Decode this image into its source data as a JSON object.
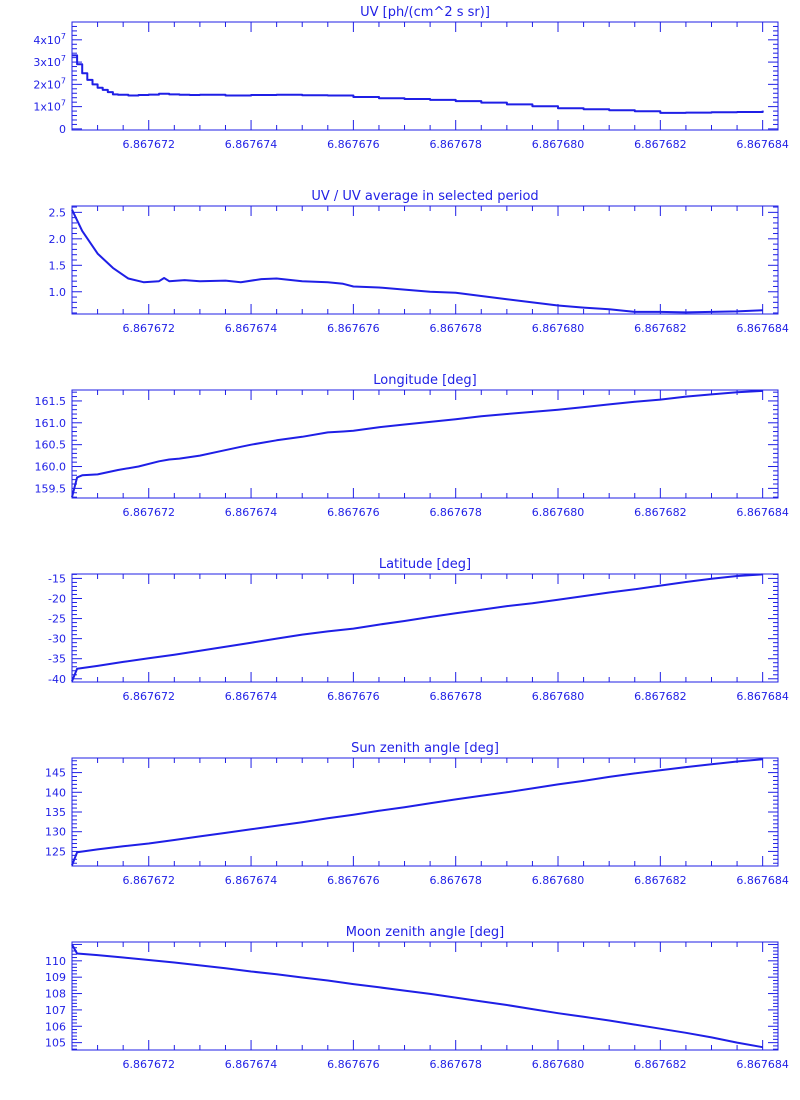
{
  "colors": {
    "ink": "#1f1fe6",
    "background": "#ffffff"
  },
  "chart_data": [
    {
      "type": "line",
      "title": "UV [ph/(cm^2 s sr)]",
      "xlim": [
        6.8676705,
        6.8676843
      ],
      "ylim": [
        -500000,
        48000000
      ],
      "x_ticks": [
        6.867672,
        6.867674,
        6.867676,
        6.867678,
        6.86768,
        6.867682,
        6.867684
      ],
      "x_tick_labels": [
        "6.867672",
        "6.867674",
        "6.867676",
        "6.867678",
        "6.867680",
        "6.867682",
        "6.867684"
      ],
      "y_ticks": [
        0,
        10000000,
        20000000,
        30000000,
        40000000
      ],
      "y_tick_labels": [
        {
          "base": "0",
          "exp": ""
        },
        {
          "base": "1x10",
          "exp": "7"
        },
        {
          "base": "2x10",
          "exp": "7"
        },
        {
          "base": "3x10",
          "exp": "7"
        },
        {
          "base": "4x10",
          "exp": "7"
        }
      ],
      "step": true,
      "x": [
        6.8676705,
        6.8676706,
        6.8676707,
        6.8676708,
        6.8676709,
        6.867671,
        6.8676711,
        6.8676712,
        6.8676713,
        6.8676714,
        6.8676716,
        6.8676718,
        6.867672,
        6.8676722,
        6.8676724,
        6.8676726,
        6.8676728,
        6.867673,
        6.8676735,
        6.867674,
        6.8676745,
        6.867675,
        6.8676755,
        6.867676,
        6.8676765,
        6.867677,
        6.8676775,
        6.867678,
        6.8676785,
        6.867679,
        6.8676795,
        6.86768,
        6.8676805,
        6.867681,
        6.8676815,
        6.867682,
        6.8676825,
        6.867683,
        6.8676835,
        6.867684
      ],
      "y": [
        33000000,
        29000000,
        25000000,
        22000000,
        20000000,
        18500000,
        17500000,
        16500000,
        15500000,
        15300000,
        15000000,
        15200000,
        15400000,
        15800000,
        15500000,
        15300000,
        15200000,
        15300000,
        15000000,
        15200000,
        15300000,
        15100000,
        15000000,
        14300000,
        13800000,
        13400000,
        13000000,
        12500000,
        11800000,
        11000000,
        10200000,
        9300000,
        8800000,
        8400000,
        7900000,
        7200000,
        7300000,
        7500000,
        7600000,
        8200000
      ]
    },
    {
      "type": "line",
      "title": "UV / UV average in selected period",
      "xlim": [
        6.8676705,
        6.8676843
      ],
      "ylim": [
        0.58,
        2.62
      ],
      "x_ticks": [
        6.867672,
        6.867674,
        6.867676,
        6.867678,
        6.86768,
        6.867682,
        6.867684
      ],
      "x_tick_labels": [
        "6.867672",
        "6.867674",
        "6.867676",
        "6.867678",
        "6.867680",
        "6.867682",
        "6.867684"
      ],
      "y_ticks": [
        1.0,
        1.5,
        2.0,
        2.5
      ],
      "y_tick_labels": [
        "1.0",
        "1.5",
        "2.0",
        "2.5"
      ],
      "x": [
        6.8676705,
        6.8676707,
        6.867671,
        6.8676713,
        6.8676716,
        6.8676719,
        6.8676722,
        6.8676723,
        6.8676724,
        6.8676727,
        6.867673,
        6.8676735,
        6.8676738,
        6.8676742,
        6.8676745,
        6.867675,
        6.8676755,
        6.8676758,
        6.867676,
        6.8676765,
        6.867677,
        6.8676775,
        6.867678,
        6.8676785,
        6.867679,
        6.8676795,
        6.86768,
        6.8676805,
        6.867681,
        6.8676815,
        6.867682,
        6.8676825,
        6.867683,
        6.8676835,
        6.867684
      ],
      "y": [
        2.55,
        2.15,
        1.72,
        1.45,
        1.25,
        1.18,
        1.2,
        1.26,
        1.2,
        1.22,
        1.2,
        1.21,
        1.18,
        1.24,
        1.25,
        1.2,
        1.18,
        1.15,
        1.1,
        1.08,
        1.04,
        1.0,
        0.98,
        0.92,
        0.86,
        0.8,
        0.74,
        0.7,
        0.67,
        0.62,
        0.62,
        0.61,
        0.62,
        0.63,
        0.65
      ]
    },
    {
      "type": "line",
      "title": "Longitude [deg]",
      "xlim": [
        6.8676705,
        6.8676843
      ],
      "ylim": [
        159.28,
        161.75
      ],
      "x_ticks": [
        6.867672,
        6.867674,
        6.867676,
        6.867678,
        6.86768,
        6.867682,
        6.867684
      ],
      "x_tick_labels": [
        "6.867672",
        "6.867674",
        "6.867676",
        "6.867678",
        "6.867680",
        "6.867682",
        "6.867684"
      ],
      "y_ticks": [
        159.5,
        160.0,
        160.5,
        161.0,
        161.5
      ],
      "y_tick_labels": [
        "159.5",
        "160.0",
        "160.5",
        "161.0",
        "161.5"
      ],
      "x": [
        6.8676705,
        6.8676706,
        6.8676707,
        6.867671,
        6.8676714,
        6.8676718,
        6.8676722,
        6.8676724,
        6.8676726,
        6.867673,
        6.8676734,
        6.8676738,
        6.867674,
        6.8676745,
        6.867675,
        6.8676755,
        6.8676758,
        6.867676,
        6.8676765,
        6.867677,
        6.8676775,
        6.867678,
        6.8676785,
        6.867679,
        6.8676795,
        6.86768,
        6.8676805,
        6.867681,
        6.8676815,
        6.867682,
        6.8676825,
        6.867683,
        6.8676835,
        6.867684
      ],
      "y": [
        159.3,
        159.75,
        159.8,
        159.82,
        159.92,
        160.0,
        160.12,
        160.16,
        160.18,
        160.25,
        160.35,
        160.45,
        160.5,
        160.6,
        160.68,
        160.78,
        160.8,
        160.82,
        160.9,
        160.96,
        161.02,
        161.08,
        161.15,
        161.2,
        161.25,
        161.3,
        161.36,
        161.42,
        161.48,
        161.53,
        161.6,
        161.65,
        161.7,
        161.73
      ]
    },
    {
      "type": "line",
      "title": "Latitude [deg]",
      "xlim": [
        6.8676705,
        6.8676843
      ],
      "ylim": [
        -40.8,
        -13.9
      ],
      "x_ticks": [
        6.867672,
        6.867674,
        6.867676,
        6.867678,
        6.86768,
        6.867682,
        6.867684
      ],
      "x_tick_labels": [
        "6.867672",
        "6.867674",
        "6.867676",
        "6.867678",
        "6.867680",
        "6.867682",
        "6.867684"
      ],
      "y_ticks": [
        -40,
        -35,
        -30,
        -25,
        -20,
        -15
      ],
      "y_tick_labels": [
        "-40",
        "-35",
        "-30",
        "-25",
        "-20",
        "-15"
      ],
      "x": [
        6.8676705,
        6.8676706,
        6.867671,
        6.8676715,
        6.867672,
        6.8676725,
        6.867673,
        6.8676735,
        6.867674,
        6.8676745,
        6.867675,
        6.8676755,
        6.867676,
        6.8676765,
        6.867677,
        6.8676775,
        6.867678,
        6.8676785,
        6.867679,
        6.8676795,
        6.86768,
        6.8676805,
        6.867681,
        6.8676815,
        6.867682,
        6.8676825,
        6.867683,
        6.8676835,
        6.867684
      ],
      "y": [
        -40.6,
        -37.5,
        -36.8,
        -35.8,
        -34.9,
        -34.0,
        -33.0,
        -32.0,
        -31.0,
        -30.0,
        -29.0,
        -28.2,
        -27.5,
        -26.5,
        -25.6,
        -24.6,
        -23.7,
        -22.8,
        -21.9,
        -21.2,
        -20.3,
        -19.4,
        -18.5,
        -17.7,
        -16.8,
        -15.9,
        -15.1,
        -14.4,
        -14.0
      ]
    },
    {
      "type": "line",
      "title": "Sun zenith angle [deg]",
      "xlim": [
        6.8676705,
        6.8676843
      ],
      "ylim": [
        121.3,
        148.7
      ],
      "x_ticks": [
        6.867672,
        6.867674,
        6.867676,
        6.867678,
        6.86768,
        6.867682,
        6.867684
      ],
      "x_tick_labels": [
        "6.867672",
        "6.867674",
        "6.867676",
        "6.867678",
        "6.867680",
        "6.867682",
        "6.867684"
      ],
      "y_ticks": [
        125,
        130,
        135,
        140,
        145
      ],
      "y_tick_labels": [
        "125",
        "130",
        "135",
        "140",
        "145"
      ],
      "x": [
        6.8676705,
        6.8676706,
        6.867671,
        6.8676715,
        6.867672,
        6.8676725,
        6.867673,
        6.8676735,
        6.867674,
        6.8676745,
        6.867675,
        6.8676755,
        6.867676,
        6.8676765,
        6.867677,
        6.8676775,
        6.867678,
        6.8676785,
        6.867679,
        6.8676795,
        6.86768,
        6.8676805,
        6.867681,
        6.8676815,
        6.867682,
        6.8676825,
        6.867683,
        6.8676835,
        6.867684
      ],
      "y": [
        121.5,
        124.8,
        125.5,
        126.3,
        127.0,
        127.9,
        128.8,
        129.7,
        130.6,
        131.5,
        132.4,
        133.4,
        134.3,
        135.3,
        136.2,
        137.2,
        138.2,
        139.1,
        140.0,
        141.0,
        142.0,
        142.9,
        143.9,
        144.8,
        145.6,
        146.4,
        147.1,
        147.8,
        148.4
      ]
    },
    {
      "type": "line",
      "title": "Moon zenith angle [deg]",
      "xlim": [
        6.8676705,
        6.8676843
      ],
      "ylim": [
        104.55,
        111.15
      ],
      "x_ticks": [
        6.867672,
        6.867674,
        6.867676,
        6.867678,
        6.86768,
        6.867682,
        6.867684
      ],
      "x_tick_labels": [
        "6.867672",
        "6.867674",
        "6.867676",
        "6.867678",
        "6.867680",
        "6.867682",
        "6.867684"
      ],
      "y_ticks": [
        105,
        106,
        107,
        108,
        109,
        110
      ],
      "y_tick_labels": [
        "105",
        "106",
        "107",
        "108",
        "109",
        "110"
      ],
      "x": [
        6.8676705,
        6.8676706,
        6.867671,
        6.8676715,
        6.867672,
        6.8676725,
        6.867673,
        6.8676735,
        6.867674,
        6.8676745,
        6.867675,
        6.8676755,
        6.867676,
        6.8676765,
        6.867677,
        6.8676775,
        6.867678,
        6.8676785,
        6.867679,
        6.8676795,
        6.86768,
        6.8676805,
        6.867681,
        6.8676815,
        6.867682,
        6.8676825,
        6.867683,
        6.8676835,
        6.867684
      ],
      "y": [
        111.0,
        110.45,
        110.35,
        110.2,
        110.05,
        109.9,
        109.72,
        109.55,
        109.35,
        109.18,
        108.98,
        108.8,
        108.58,
        108.38,
        108.18,
        107.98,
        107.75,
        107.52,
        107.3,
        107.05,
        106.8,
        106.58,
        106.35,
        106.1,
        105.85,
        105.6,
        105.32,
        105.0,
        104.72
      ]
    }
  ]
}
